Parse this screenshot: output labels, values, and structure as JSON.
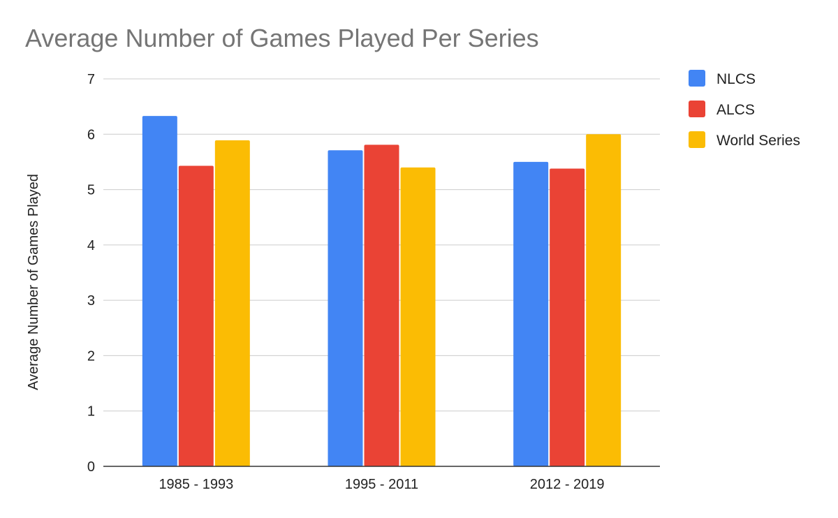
{
  "chart_data": {
    "type": "bar",
    "title": "Average Number of Games Played Per Series",
    "xlabel": "",
    "ylabel": "Average Number of Games Played",
    "ylim": [
      0,
      7
    ],
    "yticks": [
      0,
      1,
      2,
      3,
      4,
      5,
      6,
      7
    ],
    "grid": true,
    "legend_position": "right",
    "categories": [
      "1985 - 1993",
      "1995 - 2011",
      "2012 - 2019"
    ],
    "series": [
      {
        "name": "NLCS",
        "color": "#4285F4",
        "values": [
          6.33,
          5.71,
          5.5
        ]
      },
      {
        "name": "ALCS",
        "color": "#EA4335",
        "values": [
          5.43,
          5.81,
          5.38
        ]
      },
      {
        "name": "World Series",
        "color": "#FBBC04",
        "values": [
          5.89,
          5.4,
          6.0
        ]
      }
    ]
  }
}
